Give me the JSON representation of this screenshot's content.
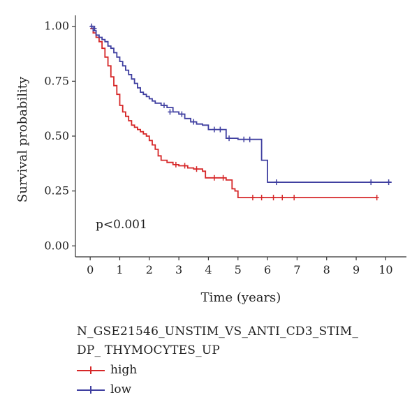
{
  "chart_data": {
    "type": "line",
    "subtype": "kaplan-meier",
    "xlabel": "Time (years)",
    "ylabel": "Survival probability",
    "xlim": [
      -0.5,
      10.7
    ],
    "ylim": [
      -0.05,
      1.05
    ],
    "xticks": [
      "0",
      "1",
      "2",
      "3",
      "4",
      "5",
      "6",
      "7",
      "8",
      "9",
      "10"
    ],
    "yticks": [
      "0.00",
      "0.25",
      "0.50",
      "0.75",
      "1.00"
    ],
    "annotation": "p<0.001",
    "legend": {
      "title_lines": [
        "N_GSE21546_UNSTIM_VS_ANTI_CD3_STIM_",
        "DP_ THYMOCYTES_UP"
      ],
      "position": "bottom",
      "entries": [
        "high",
        "low"
      ]
    },
    "series": [
      {
        "name": "high",
        "color": "#d62728",
        "x": [
          0,
          0.1,
          0.2,
          0.3,
          0.4,
          0.5,
          0.6,
          0.7,
          0.8,
          0.9,
          1.0,
          1.1,
          1.2,
          1.3,
          1.4,
          1.5,
          1.6,
          1.7,
          1.8,
          1.9,
          2.0,
          2.1,
          2.2,
          2.3,
          2.4,
          2.6,
          2.8,
          3.0,
          3.3,
          3.5,
          3.8,
          3.9,
          4.4,
          4.6,
          4.8,
          4.9,
          5.0,
          9.7
        ],
        "y": [
          0.99,
          0.97,
          0.95,
          0.93,
          0.9,
          0.86,
          0.82,
          0.77,
          0.73,
          0.69,
          0.64,
          0.61,
          0.59,
          0.57,
          0.55,
          0.54,
          0.53,
          0.52,
          0.51,
          0.5,
          0.48,
          0.46,
          0.44,
          0.41,
          0.39,
          0.38,
          0.37,
          0.365,
          0.355,
          0.35,
          0.34,
          0.31,
          0.31,
          0.3,
          0.26,
          0.25,
          0.22,
          0.22
        ],
        "censor_x": [
          2.9,
          3.2,
          3.6,
          4.2,
          4.5,
          5.5,
          5.8,
          6.2,
          6.5,
          6.9,
          9.7
        ],
        "censor_y": [
          0.37,
          0.365,
          0.35,
          0.31,
          0.31,
          0.22,
          0.22,
          0.22,
          0.22,
          0.22,
          0.22
        ]
      },
      {
        "name": "low",
        "color": "#3f3fa0",
        "x": [
          0,
          0.1,
          0.2,
          0.3,
          0.4,
          0.5,
          0.6,
          0.7,
          0.8,
          0.9,
          1.0,
          1.1,
          1.2,
          1.3,
          1.4,
          1.5,
          1.6,
          1.7,
          1.8,
          1.9,
          2.0,
          2.1,
          2.2,
          2.4,
          2.6,
          2.8,
          3.0,
          3.2,
          3.4,
          3.6,
          3.8,
          4.0,
          4.6,
          5.0,
          5.6,
          5.8,
          6.0,
          10.2
        ],
        "y": [
          1.0,
          0.98,
          0.96,
          0.95,
          0.94,
          0.93,
          0.91,
          0.9,
          0.88,
          0.86,
          0.84,
          0.82,
          0.8,
          0.78,
          0.76,
          0.74,
          0.72,
          0.7,
          0.69,
          0.68,
          0.67,
          0.66,
          0.65,
          0.64,
          0.63,
          0.61,
          0.6,
          0.58,
          0.565,
          0.555,
          0.55,
          0.53,
          0.49,
          0.485,
          0.485,
          0.39,
          0.29,
          0.29
        ],
        "censor_x": [
          0.05,
          0.15,
          2.5,
          2.7,
          3.1,
          3.5,
          4.2,
          4.4,
          4.7,
          5.2,
          5.4,
          6.3,
          9.5,
          10.1
        ],
        "censor_y": [
          1.0,
          0.99,
          0.64,
          0.61,
          0.6,
          0.565,
          0.53,
          0.53,
          0.49,
          0.485,
          0.485,
          0.29,
          0.29,
          0.29
        ]
      }
    ]
  }
}
